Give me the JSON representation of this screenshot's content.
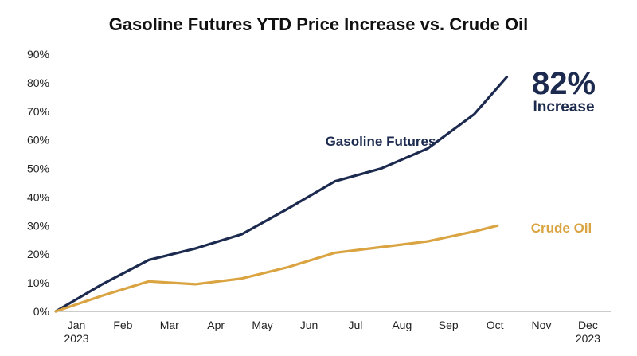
{
  "chart_data": {
    "type": "line",
    "title": "Gasoline Futures YTD Price Increase vs. Crude Oil",
    "xlabel": "",
    "ylabel": "",
    "x_ticks": [
      "Jan",
      "Feb",
      "Mar",
      "Apr",
      "May",
      "Jun",
      "Jul",
      "Aug",
      "Sep",
      "Oct",
      "Nov",
      "Dec"
    ],
    "x_tick_sublabels": {
      "Jan": "2023",
      "Dec": "2023"
    },
    "y_ticks": [
      "0%",
      "10%",
      "20%",
      "30%",
      "40%",
      "50%",
      "60%",
      "70%",
      "80%",
      "90%"
    ],
    "ylim": [
      0,
      90
    ],
    "grid": false,
    "series": [
      {
        "name": "Gasoline Futures",
        "color": "#1b2a4e",
        "x": [
          0,
          1,
          2,
          3,
          4,
          5,
          6,
          7,
          8,
          9,
          9.7
        ],
        "values": [
          0,
          9.5,
          18,
          22,
          27,
          36,
          45.5,
          50,
          57,
          69,
          82
        ]
      },
      {
        "name": "Crude Oil",
        "color": "#d9a441",
        "x": [
          0,
          1,
          2,
          3,
          4,
          5,
          6,
          7,
          8,
          9,
          9.5
        ],
        "values": [
          0,
          5.5,
          10.5,
          9.5,
          11.5,
          15.5,
          20.5,
          22.5,
          24.5,
          28,
          30
        ]
      }
    ],
    "annotation": {
      "value": "82%",
      "text": "Increase",
      "color": "#1b2a4e"
    }
  }
}
